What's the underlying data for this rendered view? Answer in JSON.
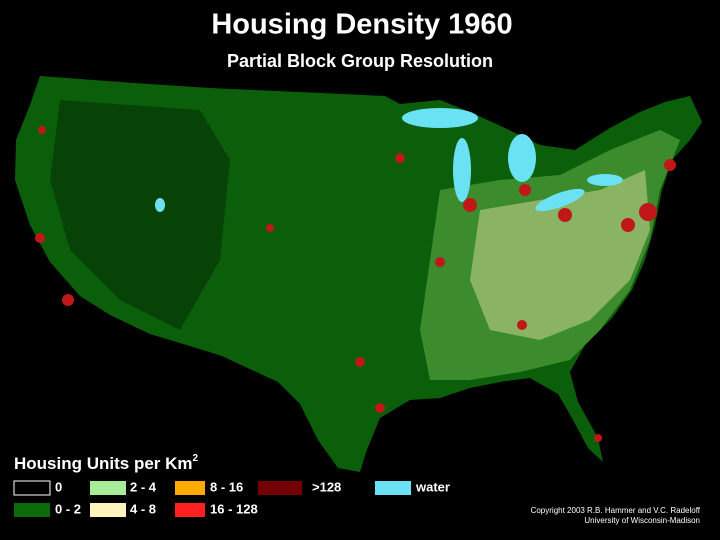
{
  "header": {
    "title": "Housing Density 1960",
    "subtitle": "Partial Block Group Resolution"
  },
  "legend": {
    "title": "Housing Units per Km",
    "title_sup": "2",
    "items": [
      {
        "label": "0",
        "color": "#000000"
      },
      {
        "label": "0 - 2",
        "color": "#0a6b0a"
      },
      {
        "label": "2 - 4",
        "color": "#a6ec96"
      },
      {
        "label": "4 - 8",
        "color": "#fff4be"
      },
      {
        "label": "8 - 16",
        "color": "#ffaa00"
      },
      {
        "label": "16 - 128",
        "color": "#ff2020"
      },
      {
        "label": ">128",
        "color": "#730000"
      },
      {
        "label": "water",
        "color": "#6be2f4"
      }
    ]
  },
  "credits": {
    "line1": "Copyright 2003 R.B. Hammer and V.C. Radeloff",
    "line2": "University of Wisconsin-Madison"
  }
}
